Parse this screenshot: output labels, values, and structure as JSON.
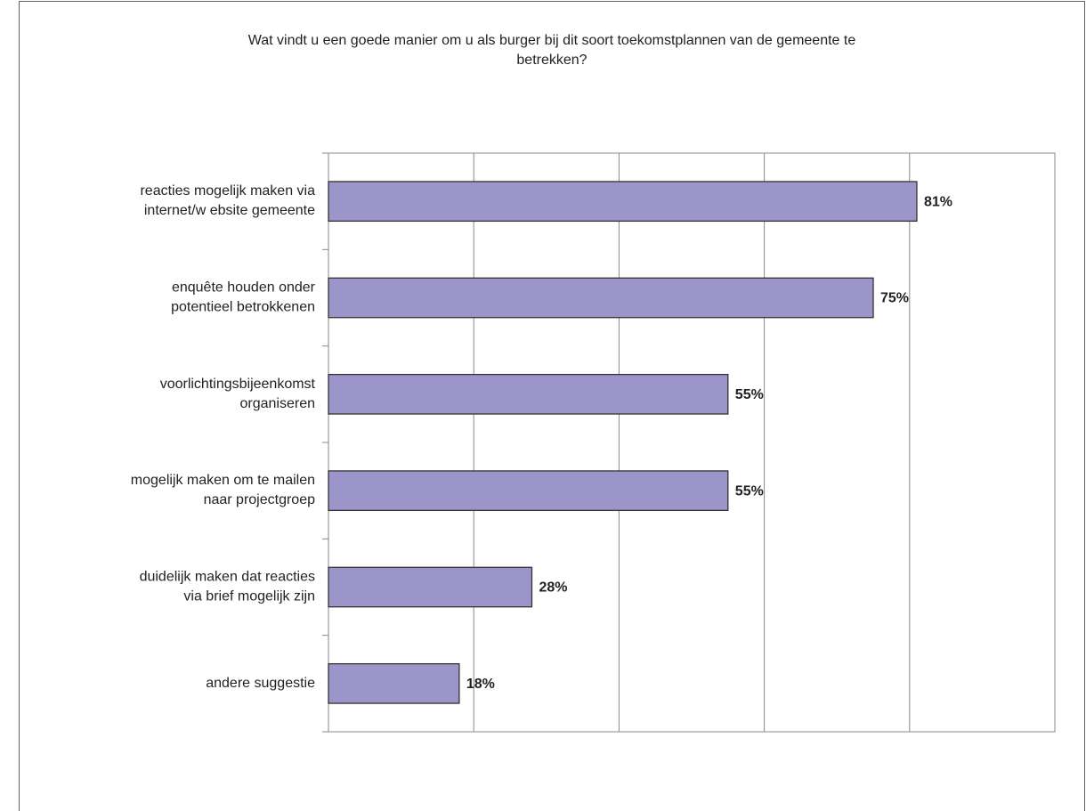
{
  "chart_data": {
    "type": "bar",
    "orientation": "horizontal",
    "title": [
      "Wat vindt u een goede manier om u als burger bij dit soort toekomstplannen van de gemeente te",
      "betrekken?"
    ],
    "categories": [
      [
        "reacties mogelijk maken via",
        "internet/w ebsite gemeente"
      ],
      [
        "enquête houden onder",
        "potentieel betrokkenen"
      ],
      [
        "voorlichtingsbijeenkomst",
        "organiseren"
      ],
      [
        "mogelijk maken om te mailen",
        "naar projectgroep"
      ],
      [
        "duidelijk maken dat reacties",
        "via brief mogelijk zijn"
      ],
      [
        "andere suggestie"
      ]
    ],
    "values": [
      81,
      75,
      55,
      55,
      28,
      18
    ],
    "value_labels": [
      "81%",
      "75%",
      "55%",
      "55%",
      "28%",
      "18%"
    ],
    "color": "#9c95c9",
    "xlim": [
      0,
      100
    ],
    "xticks": [
      0,
      20,
      40,
      60,
      80,
      100
    ],
    "grid": true
  }
}
